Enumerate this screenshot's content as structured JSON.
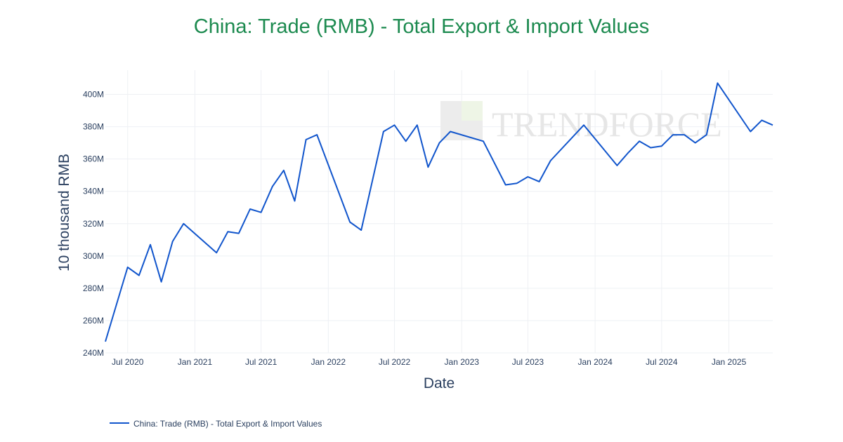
{
  "chart_data": {
    "type": "line",
    "title": "China: Trade (RMB) - Total Export & Import Values",
    "xlabel": "Date",
    "ylabel": "10 thousand RMB",
    "ylim": [
      240,
      415
    ],
    "y_unit_suffix": "M",
    "y_ticks": [
      240,
      260,
      280,
      300,
      320,
      340,
      360,
      380,
      400
    ],
    "x_ticks": [
      {
        "date": "2020-07-01",
        "label": "Jul 2020"
      },
      {
        "date": "2021-01-01",
        "label": "Jan 2021"
      },
      {
        "date": "2021-07-01",
        "label": "Jul 2021"
      },
      {
        "date": "2022-01-01",
        "label": "Jan 2022"
      },
      {
        "date": "2022-07-01",
        "label": "Jul 2022"
      },
      {
        "date": "2023-01-01",
        "label": "Jan 2023"
      },
      {
        "date": "2023-07-01",
        "label": "Jul 2023"
      },
      {
        "date": "2024-01-01",
        "label": "Jan 2024"
      },
      {
        "date": "2024-07-01",
        "label": "Jul 2024"
      },
      {
        "date": "2025-01-01",
        "label": "Jan 2025"
      }
    ],
    "x_range": [
      "2020-05-01",
      "2025-05-01"
    ],
    "grid": true,
    "legend_position": "bottom-left",
    "series": [
      {
        "name": "China: Trade (RMB) - Total Export & Import Values",
        "color": "#1155cc",
        "points": [
          [
            "2020-05-01",
            247
          ],
          [
            "2020-07-01",
            293
          ],
          [
            "2020-08-01",
            288
          ],
          [
            "2020-09-01",
            307
          ],
          [
            "2020-10-01",
            284
          ],
          [
            "2020-11-01",
            309
          ],
          [
            "2020-12-01",
            320
          ],
          [
            "2021-03-01",
            302
          ],
          [
            "2021-04-01",
            315
          ],
          [
            "2021-05-01",
            314
          ],
          [
            "2021-06-01",
            329
          ],
          [
            "2021-07-01",
            327
          ],
          [
            "2021-08-01",
            343
          ],
          [
            "2021-09-01",
            353
          ],
          [
            "2021-10-01",
            334
          ],
          [
            "2021-11-01",
            372
          ],
          [
            "2021-12-01",
            375
          ],
          [
            "2022-03-01",
            321
          ],
          [
            "2022-04-01",
            316
          ],
          [
            "2022-06-01",
            377
          ],
          [
            "2022-07-01",
            381
          ],
          [
            "2022-08-01",
            371
          ],
          [
            "2022-09-01",
            381
          ],
          [
            "2022-10-01",
            355
          ],
          [
            "2022-11-01",
            370
          ],
          [
            "2022-12-01",
            377
          ],
          [
            "2023-03-01",
            371
          ],
          [
            "2023-05-01",
            344
          ],
          [
            "2023-06-01",
            345
          ],
          [
            "2023-07-01",
            349
          ],
          [
            "2023-08-01",
            346
          ],
          [
            "2023-09-01",
            359
          ],
          [
            "2023-12-01",
            381
          ],
          [
            "2024-03-01",
            356
          ],
          [
            "2024-04-01",
            364
          ],
          [
            "2024-05-01",
            371
          ],
          [
            "2024-06-01",
            367
          ],
          [
            "2024-07-01",
            368
          ],
          [
            "2024-08-01",
            375
          ],
          [
            "2024-09-01",
            375
          ],
          [
            "2024-10-01",
            370
          ],
          [
            "2024-11-01",
            375
          ],
          [
            "2024-12-01",
            407
          ],
          [
            "2025-03-01",
            377
          ],
          [
            "2025-04-01",
            384
          ],
          [
            "2025-05-01",
            381
          ]
        ]
      }
    ]
  },
  "watermark": {
    "text": "TRENDFORCE"
  }
}
